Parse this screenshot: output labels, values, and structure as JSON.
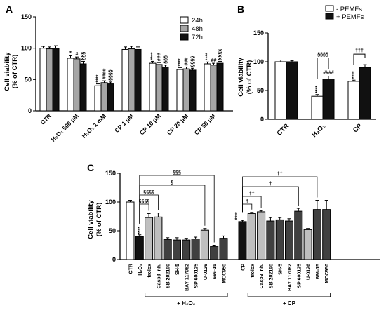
{
  "panels": {
    "A": "A",
    "B": "B",
    "C": "C"
  },
  "chart_data": [
    {
      "panel": "A",
      "type": "bar",
      "ylabel": "Cell viability",
      "ylabel2": "(% of CTR)",
      "ylim": [
        0,
        150
      ],
      "yticks": [
        0,
        50,
        100,
        150
      ],
      "categories": [
        "CTR",
        "H₂O₂ 500 μM",
        "H₂O₂ 1 mM",
        "CP 1 μM",
        "CP 10 μM",
        "CP 20 μM",
        "CP 50 μM"
      ],
      "series": [
        {
          "name": "24h",
          "color": "#ffffff",
          "values": [
            100,
            84,
            40,
            98,
            76,
            66,
            75
          ],
          "err": [
            3,
            4,
            3,
            4,
            3,
            3,
            3
          ]
        },
        {
          "name": "48h",
          "color": "#a6a6a6",
          "values": [
            99,
            83,
            45,
            99,
            74,
            67,
            73
          ],
          "err": [
            3,
            3,
            3,
            4,
            3,
            3,
            3
          ]
        },
        {
          "name": "72h",
          "color": "#111111",
          "values": [
            100,
            75,
            43,
            98,
            70,
            65,
            76
          ],
          "err": [
            4,
            4,
            3,
            4,
            3,
            3,
            3
          ]
        }
      ],
      "annotations": [
        [
          "*",
          "#",
          "§§§"
        ],
        [
          "****",
          "####",
          "§§§§"
        ],
        [],
        [
          "****",
          "###",
          "§§§"
        ],
        [
          "****",
          "###",
          "§§§§"
        ],
        [
          "****",
          "##",
          "§§§§"
        ]
      ]
    },
    {
      "panel": "B",
      "type": "bar",
      "ylabel": "Cell viability",
      "ylabel2": "(% of CTR)",
      "ylim": [
        0,
        150
      ],
      "yticks": [
        0,
        50,
        100,
        150
      ],
      "categories": [
        "CTR",
        "H₂O₂",
        "CP"
      ],
      "series": [
        {
          "name": "- PEMFs",
          "color": "#ffffff",
          "values": [
            100,
            40,
            66
          ],
          "err": [
            3,
            3,
            2
          ]
        },
        {
          "name": "+ PEMFs",
          "color": "#111111",
          "values": [
            100,
            70,
            90
          ],
          "err": [
            2,
            5,
            5
          ]
        }
      ],
      "annotations": {
        "h2o2_neg": "****",
        "h2o2_pos": "####",
        "cp_neg": "****",
        "h2o2_bracket": "§§§§",
        "cp_bracket": "†††"
      }
    },
    {
      "panel": "C",
      "type": "bar",
      "ylabel": "Cell viability",
      "ylabel2": "(% of CTR)",
      "ylim": [
        0,
        150
      ],
      "yticks": [
        0,
        50,
        100,
        150
      ],
      "categories": [
        "CTR",
        "H₂O₂",
        "trolox",
        "Casp3 inh.",
        "SB 202190",
        "SH-5",
        "BAY 117082",
        "SP 600125",
        "U-0126",
        "666-15",
        "MCC950",
        "CP",
        "trolox",
        "Casp3 inh.",
        "SB 202190",
        "SH-5",
        "BAY 117082",
        "SP 600125",
        "U-0126",
        "666-15",
        "MCC950"
      ],
      "values": [
        100,
        40,
        73,
        74,
        35,
        34,
        34,
        36,
        51,
        23,
        37,
        66,
        80,
        83,
        67,
        69,
        67,
        84,
        52,
        87,
        87
      ],
      "err": [
        3,
        3,
        7,
        7,
        3,
        4,
        3,
        3,
        3,
        2,
        4,
        2,
        2,
        2,
        6,
        4,
        4,
        5,
        2,
        16,
        16
      ],
      "colors": [
        "#ffffff",
        "#111111",
        "#bfbfbf",
        "#bfbfbf",
        "#404040",
        "#404040",
        "#404040",
        "#404040",
        "#bfbfbf",
        "#404040",
        "#404040",
        "#111111",
        "#bfbfbf",
        "#bfbfbf",
        "#404040",
        "#404040",
        "#404040",
        "#404040",
        "#bfbfbf",
        "#404040",
        "#404040"
      ],
      "group_labels": [
        "+ H₂O₂",
        "+ CP"
      ],
      "brackets": {
        "h2o2": [
          "§§§",
          "§",
          "§§§§",
          "§§§§"
        ],
        "cp": [
          "††",
          "†",
          "††",
          "†"
        ],
        "stars": [
          "****",
          "****"
        ]
      }
    }
  ]
}
